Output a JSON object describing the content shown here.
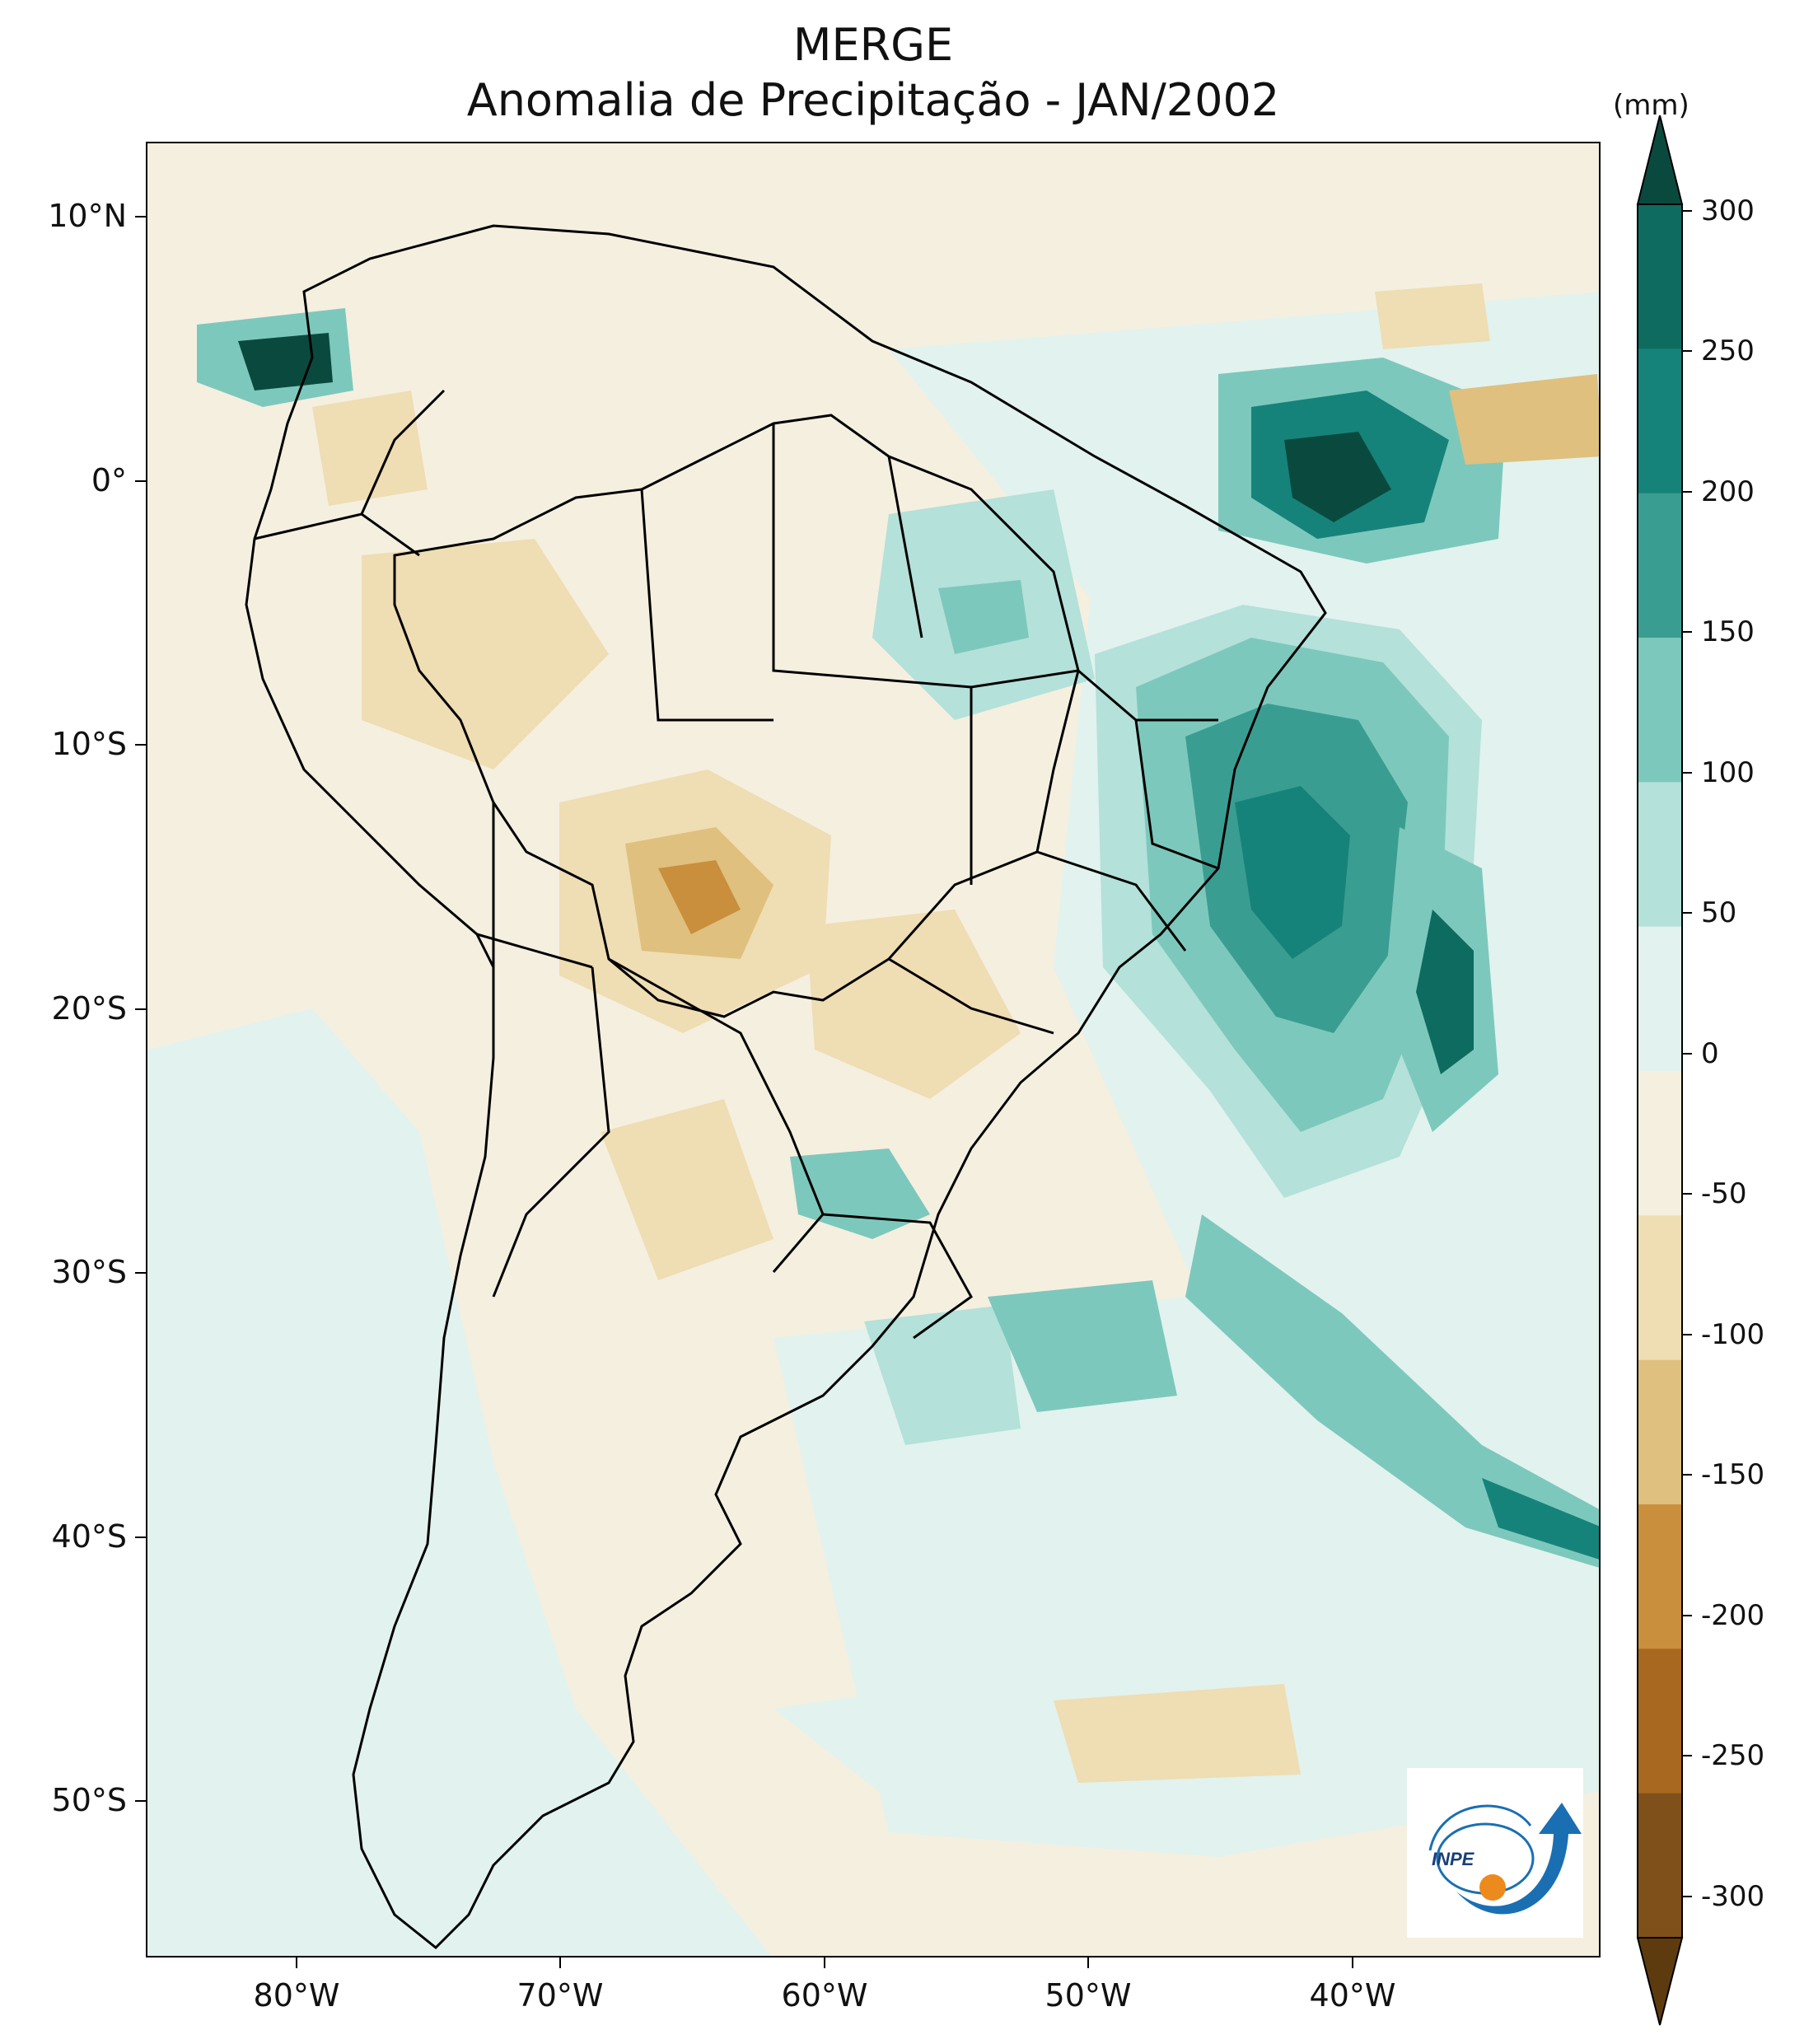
{
  "title": {
    "line1": "MERGE",
    "line2": "Anomalia de Precipitação - JAN/2002"
  },
  "map": {
    "lat_labels": [
      "10°N",
      "0°",
      "10°S",
      "20°S",
      "30°S",
      "40°S",
      "50°S"
    ],
    "lon_labels": [
      "80°W",
      "70°W",
      "60°W",
      "50°W",
      "40°W"
    ],
    "background_color": "#f5efe0"
  },
  "colorbar": {
    "unit": "(mm)",
    "levels": [
      300,
      250,
      200,
      150,
      100,
      50,
      0,
      -50,
      -100,
      -150,
      -200,
      -250,
      -300
    ],
    "labels": [
      "300",
      "250",
      "200",
      "150",
      "100",
      "50",
      "0",
      "-50",
      "-100",
      "-150",
      "-200",
      "-250",
      "-300"
    ],
    "colors_top_to_bottom": [
      "#0a4a3e",
      "#0d6b60",
      "#16837a",
      "#3a9d92",
      "#7dc8bc",
      "#b4e1da",
      "#e2f2ee",
      "#f5efe0",
      "#efddb3",
      "#dfc07e",
      "#c98f3d",
      "#a8681f",
      "#80501a",
      "#5e3b0f"
    ]
  },
  "logo": {
    "text": "INPE",
    "colors": {
      "blue": "#1a6fb3",
      "orange": "#ec8a1e"
    }
  }
}
